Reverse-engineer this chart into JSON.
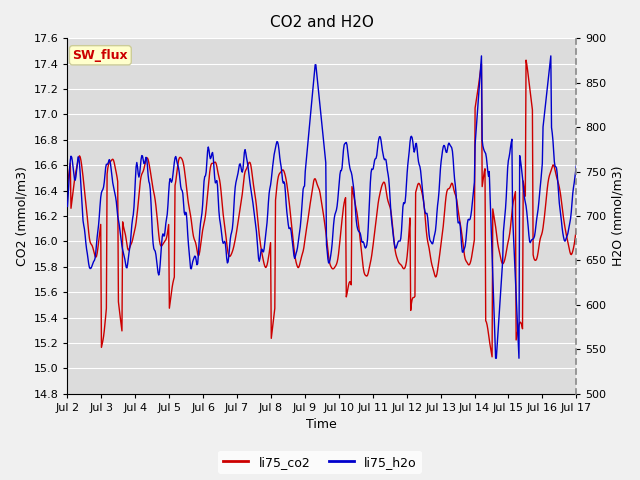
{
  "title": "CO2 and H2O",
  "xlabel": "Time",
  "ylabel_left": "CO2 (mmol/m3)",
  "ylabel_right": "H2O (mmol/m3)",
  "ylim_left": [
    14.8,
    17.6
  ],
  "ylim_right": [
    500,
    900
  ],
  "xtick_labels": [
    "Jul 2",
    "Jul 3",
    "Jul 4",
    "Jul 5",
    "Jul 6",
    "Jul 7",
    "Jul 8",
    "Jul 9",
    "Jul 10",
    "Jul 11",
    "Jul 12",
    "Jul 13",
    "Jul 14",
    "Jul 15",
    "Jul 16",
    "Jul 17"
  ],
  "color_co2": "#cc0000",
  "color_h2o": "#0000cc",
  "legend_co2": "li75_co2",
  "legend_h2o": "li75_h2o",
  "annotation_text": "SW_flux",
  "annotation_color": "#cc0000",
  "annotation_bg": "#ffffcc",
  "annotation_border": "#cccc99",
  "bg_color": "#e8e8e8",
  "plot_bg_color": "#dcdcdc",
  "grid_color": "#f0f0f0",
  "title_fontsize": 11,
  "label_fontsize": 9,
  "tick_fontsize": 8,
  "legend_fontsize": 9,
  "line_width": 1.0
}
